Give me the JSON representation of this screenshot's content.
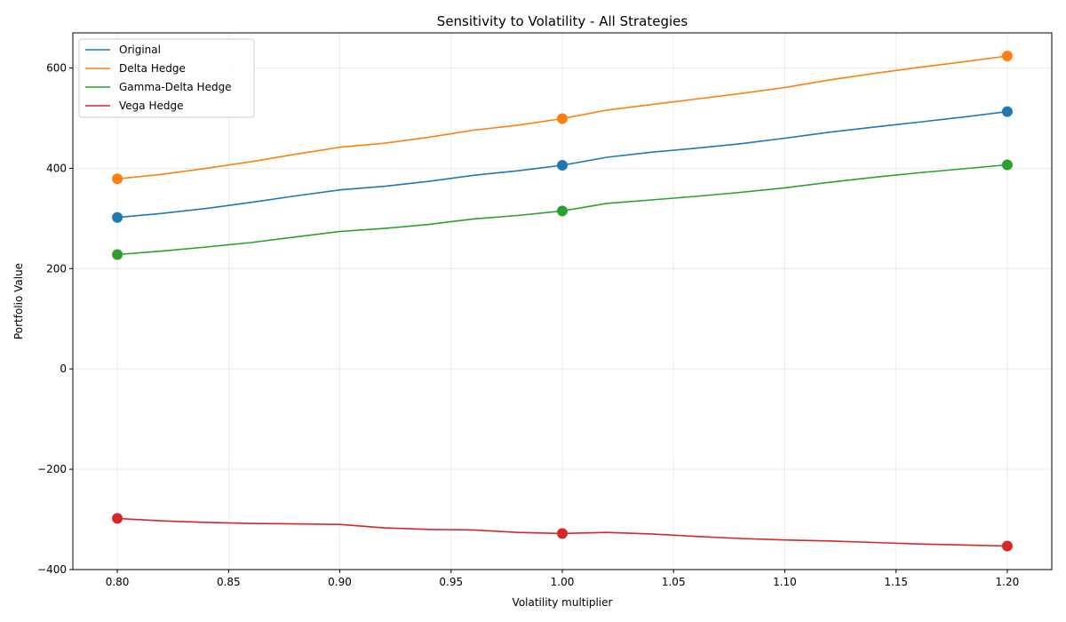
{
  "chart_data": {
    "type": "line",
    "title": "Sensitivity to Volatility - All Strategies",
    "xlabel": "Volatility multiplier",
    "ylabel": "Portfolio Value",
    "xlim": [
      0.78,
      1.22
    ],
    "ylim": [
      -400,
      670
    ],
    "x_ticks": [
      0.8,
      0.85,
      0.9,
      0.95,
      1.0,
      1.05,
      1.1,
      1.15,
      1.2
    ],
    "x_tick_labels": [
      "0.80",
      "0.85",
      "0.90",
      "0.95",
      "1.00",
      "1.05",
      "1.10",
      "1.15",
      "1.20"
    ],
    "y_ticks": [
      -400,
      -200,
      0,
      200,
      400,
      600
    ],
    "y_tick_labels": [
      "−400",
      "−200",
      "0",
      "200",
      "400",
      "600"
    ],
    "grid": true,
    "legend_position": "top-left",
    "x": [
      0.8,
      0.82,
      0.84,
      0.86,
      0.88,
      0.9,
      0.92,
      0.94,
      0.96,
      0.98,
      1.0,
      1.02,
      1.04,
      1.06,
      1.08,
      1.1,
      1.12,
      1.14,
      1.16,
      1.18,
      1.2
    ],
    "marker_x": [
      0.8,
      1.0,
      1.2
    ],
    "series": [
      {
        "name": "Original",
        "color": "#1f77b4",
        "values": [
          302,
          310,
          320,
          332,
          345,
          357,
          364,
          374,
          386,
          395,
          406,
          422,
          432,
          440,
          449,
          460,
          472,
          482,
          492,
          502,
          513
        ]
      },
      {
        "name": "Delta Hedge",
        "color": "#ff7f0e",
        "values": [
          379,
          388,
          400,
          413,
          428,
          442,
          450,
          462,
          476,
          486,
          499,
          516,
          527,
          538,
          549,
          561,
          576,
          589,
          601,
          612,
          624
        ]
      },
      {
        "name": "Gamma-Delta Hedge",
        "color": "#2ca02c",
        "values": [
          228,
          235,
          243,
          252,
          263,
          274,
          280,
          288,
          299,
          306,
          315,
          330,
          337,
          344,
          352,
          361,
          372,
          382,
          391,
          399,
          407
        ]
      },
      {
        "name": "Vega Hedge",
        "color": "#d62728",
        "values": [
          -298,
          -303,
          -306,
          -308,
          -309,
          -310,
          -317,
          -320,
          -321,
          -326,
          -328,
          -326,
          -329,
          -334,
          -338,
          -341,
          -343,
          -346,
          -349,
          -351,
          -353
        ]
      }
    ]
  }
}
